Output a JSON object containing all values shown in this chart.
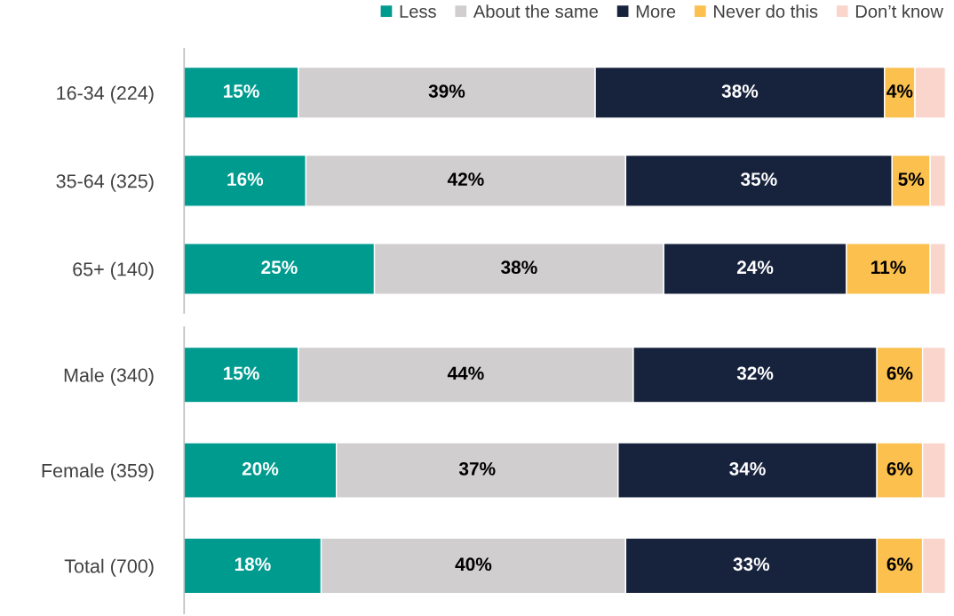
{
  "chart_data": [
    {
      "type": "bar",
      "orientation": "horizontal",
      "stacked": true,
      "legend": "top right",
      "categories": [
        "16-34 (224)",
        "35-64 (325)",
        "65+ (140)"
      ],
      "series": [
        {
          "name": "Less",
          "color": "#009b8f",
          "values": [
            15,
            16,
            25
          ],
          "value_labels": [
            "15%",
            "16%",
            "25%"
          ]
        },
        {
          "name": "About the same",
          "color": "#d0cecf",
          "values": [
            39,
            42,
            38
          ],
          "value_labels": [
            "39%",
            "42%",
            "38%"
          ]
        },
        {
          "name": "More",
          "color": "#17233d",
          "values": [
            38,
            35,
            24
          ],
          "value_labels": [
            "38%",
            "35%",
            "24%"
          ]
        },
        {
          "name": "Never do this",
          "color": "#fbc04d",
          "values": [
            4,
            5,
            11
          ],
          "value_labels": [
            "4%",
            "5%",
            "11%"
          ]
        },
        {
          "name": "Don’t know",
          "color": "#f9d5cc",
          "values": [
            4,
            2,
            2
          ],
          "value_labels": [
            null,
            null,
            null
          ]
        }
      ]
    },
    {
      "type": "bar",
      "orientation": "horizontal",
      "stacked": true,
      "categories": [
        "Male (340)",
        "Female (359)",
        "Total (700)"
      ],
      "series": [
        {
          "color": "#009b8f",
          "values": [
            15,
            20,
            18
          ],
          "value_labels": [
            "15%",
            "20%",
            "18%"
          ]
        },
        {
          "color": "#d0cecf",
          "values": [
            44,
            37,
            40
          ],
          "value_labels": [
            "44%",
            "37%",
            "40%"
          ]
        },
        {
          "color": "#17233d",
          "values": [
            32,
            34,
            33
          ],
          "value_labels": [
            "32%",
            "34%",
            "33%"
          ]
        },
        {
          "color": "#fbc04d",
          "values": [
            6,
            6,
            6
          ],
          "value_labels": [
            "6%",
            "6%",
            "6%"
          ]
        },
        {
          "color": "#f9d5cc",
          "values": [
            3,
            3,
            3
          ],
          "value_labels": [
            null,
            null,
            null
          ]
        }
      ]
    }
  ]
}
